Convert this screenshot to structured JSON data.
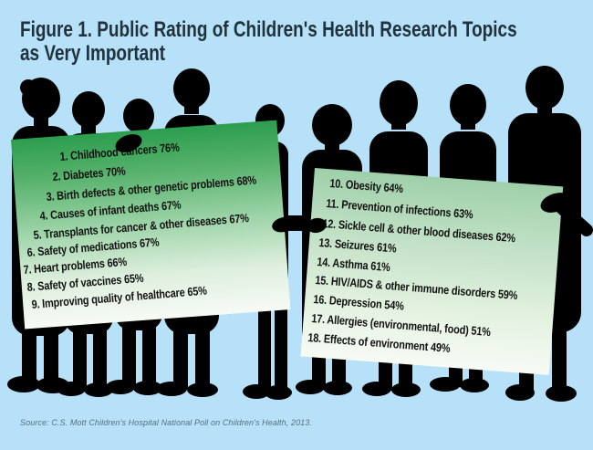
{
  "title": {
    "line1": "Figure 1. Public Rating of Children's Health Research Topics",
    "line2": "as Very Important"
  },
  "source": "Source: C.S. Mott Children's Hospital National Poll on Children's Health, 2013.",
  "signs": {
    "left": {
      "items": [
        "1. Childhood cancers 76%",
        "2. Diabetes 70%",
        "3. Birth defects & other genetic problems 68%",
        "4. Causes of infant deaths 67%",
        "5. Transplants for cancer & other diseases 67%",
        "6. Safety of medications 67%",
        "7. Heart problems 66%",
        "8. Safety of vaccines 65%",
        "9. Improving quality of healthcare 65%"
      ]
    },
    "right": {
      "items": [
        "10. Obesity 64%",
        "11. Prevention of infections 63%",
        "12. Sickle cell & other blood diseases 62%",
        "13. Seizures 61%",
        "14. Asthma 61%",
        "15. HIV/AIDS & other immune disorders 59%",
        "16. Depression 54%",
        "17. Allergies (environmental, food) 51%",
        "18. Effects of environment 49%"
      ]
    }
  },
  "colors": {
    "background": "#b7e1f8",
    "title_text": "#20323c",
    "sign_text": "#111111",
    "silhouette": "#000000",
    "left_sign_top": "#2c9d4e",
    "left_sign_bottom": "#f7fbf5",
    "right_sign_top": "#9fd0aa",
    "right_sign_bottom": "#f7fbf4",
    "source_text": "#55707e"
  },
  "chart_data": {
    "type": "table",
    "title": "Figure 1. Public Rating of Children's Health Research Topics as Very Important",
    "unit": "% of public rating topic as very important",
    "columns": [
      "rank",
      "topic",
      "percent"
    ],
    "items": [
      {
        "rank": 1,
        "topic": "Childhood cancers",
        "percent": 76
      },
      {
        "rank": 2,
        "topic": "Diabetes",
        "percent": 70
      },
      {
        "rank": 3,
        "topic": "Birth defects & other genetic problems",
        "percent": 68
      },
      {
        "rank": 4,
        "topic": "Causes of infant deaths",
        "percent": 67
      },
      {
        "rank": 5,
        "topic": "Transplants for cancer & other diseases",
        "percent": 67
      },
      {
        "rank": 6,
        "topic": "Safety of medications",
        "percent": 67
      },
      {
        "rank": 7,
        "topic": "Heart problems",
        "percent": 66
      },
      {
        "rank": 8,
        "topic": "Safety of vaccines",
        "percent": 65
      },
      {
        "rank": 9,
        "topic": "Improving quality of healthcare",
        "percent": 65
      },
      {
        "rank": 10,
        "topic": "Obesity",
        "percent": 64
      },
      {
        "rank": 11,
        "topic": "Prevention of infections",
        "percent": 63
      },
      {
        "rank": 12,
        "topic": "Sickle cell & other blood diseases",
        "percent": 62
      },
      {
        "rank": 13,
        "topic": "Seizures",
        "percent": 61
      },
      {
        "rank": 14,
        "topic": "Asthma",
        "percent": 61
      },
      {
        "rank": 15,
        "topic": "HIV/AIDS & other immune disorders",
        "percent": 59
      },
      {
        "rank": 16,
        "topic": "Depression",
        "percent": 54
      },
      {
        "rank": 17,
        "topic": "Allergies (environmental, food)",
        "percent": 51
      },
      {
        "rank": 18,
        "topic": "Effects of environment",
        "percent": 49
      }
    ],
    "source": "C.S. Mott Children's Hospital National Poll on Children's Health, 2013",
    "legend_position": "none",
    "grid": false
  }
}
